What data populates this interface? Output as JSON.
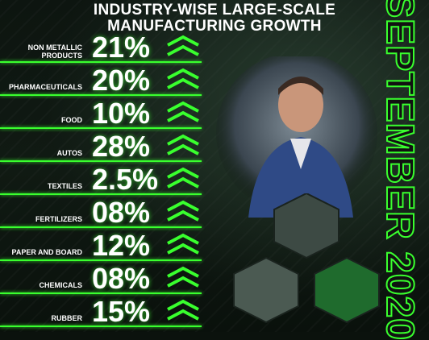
{
  "title_line1": "INDUSTRY-WISE LARGE-SCALE",
  "title_line2": "MANUFACTURING GROWTH",
  "side_label": "SEPTEMBER 2020",
  "colors": {
    "accent": "#39ff2e",
    "background": "#0b120d",
    "text": "#ffffff"
  },
  "chart_data": {
    "type": "table",
    "title": "INDUSTRY-WISE LARGE-SCALE MANUFACTURING GROWTH",
    "categories": [
      "NON METALLIC PRODUCTS",
      "PHARMACEUTICALS",
      "FOOD",
      "AUTOS",
      "TEXTILES",
      "FERTILIZERS",
      "PAPER AND BOARD",
      "CHEMICALS",
      "RUBBER"
    ],
    "value_labels": [
      "21%",
      "20%",
      "10%",
      "28%",
      "2.5%",
      "08%",
      "12%",
      "08%",
      "15%"
    ],
    "values": [
      21,
      20,
      10,
      28,
      2.5,
      8,
      12,
      8,
      15
    ],
    "unit": "%",
    "indicator": "up-chevron"
  }
}
